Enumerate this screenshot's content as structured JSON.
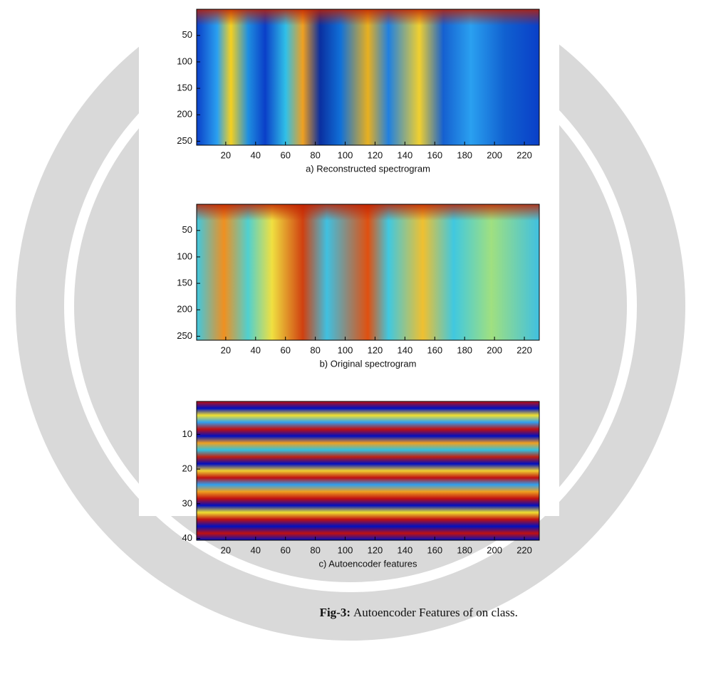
{
  "figure": {
    "panels": [
      {
        "caption": "a) Reconstructed spectrogram",
        "xlim": [
          0.5,
          230
        ],
        "ylim": [
          0.5,
          257.5
        ],
        "xticks": [
          20,
          40,
          60,
          80,
          100,
          120,
          140,
          160,
          180,
          200,
          220
        ],
        "yticks": [
          50,
          100,
          150,
          200,
          250
        ]
      },
      {
        "caption": "b) Original spectrogram",
        "xlim": [
          0.5,
          230
        ],
        "ylim": [
          0.5,
          257.5
        ],
        "xticks": [
          20,
          40,
          60,
          80,
          100,
          120,
          140,
          160,
          180,
          200,
          220
        ],
        "yticks": [
          50,
          100,
          150,
          200,
          250
        ]
      },
      {
        "caption": "c) Autoencoder features",
        "xlim": [
          0.5,
          230
        ],
        "ylim": [
          0.5,
          40.5
        ],
        "xticks": [
          20,
          40,
          60,
          80,
          100,
          120,
          140,
          160,
          180,
          200,
          220
        ],
        "yticks": [
          10,
          20,
          30,
          40
        ]
      }
    ],
    "caption": {
      "label": "Fig-3:",
      "text": "Autoencoder Features of on class."
    }
  }
}
